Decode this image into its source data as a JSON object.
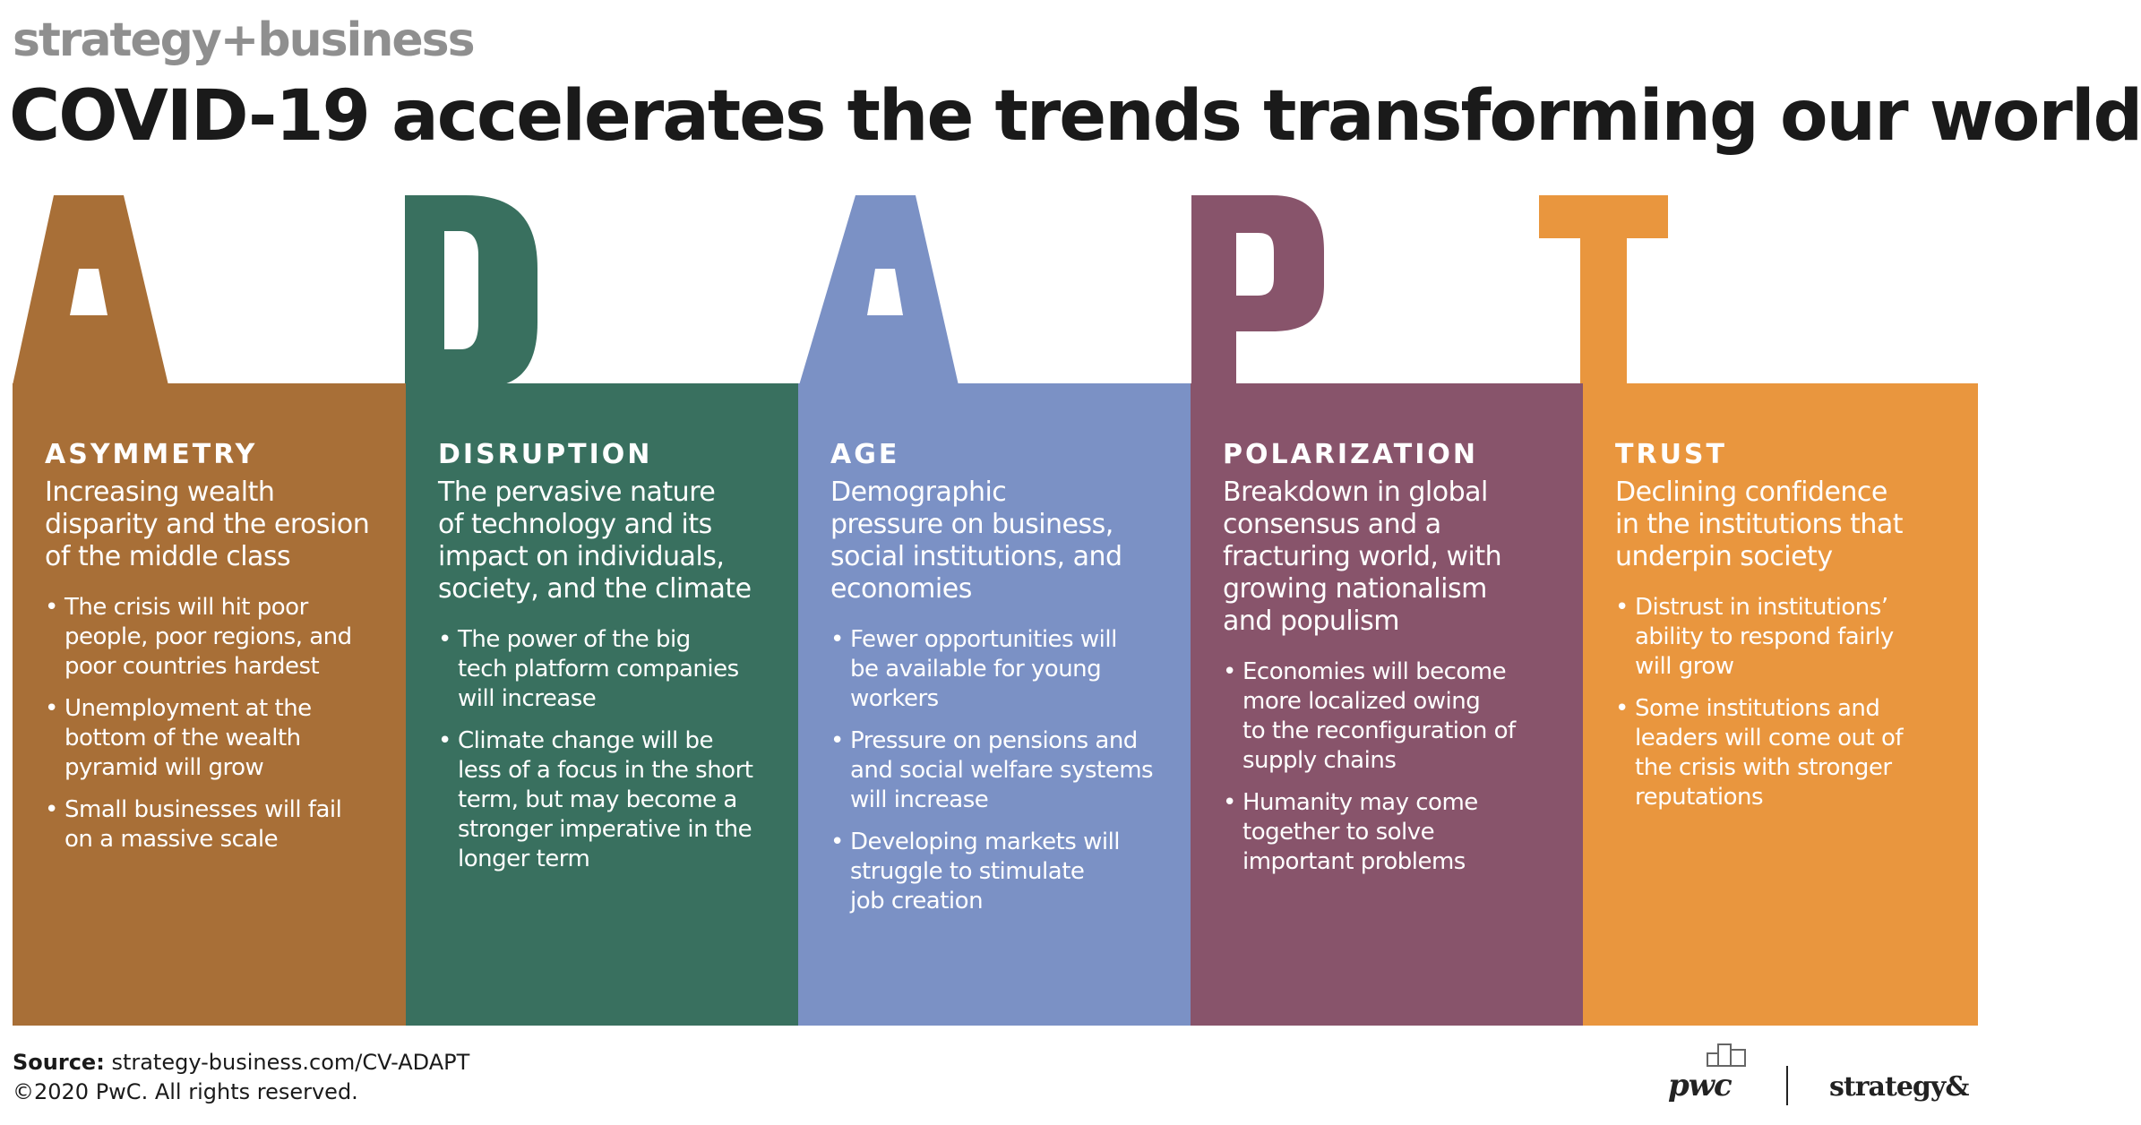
{
  "brand": "strategy+business",
  "headline": "COVID-19 accelerates the trends transforming our world",
  "columns": [
    {
      "letter": "A",
      "color": "#a86f37",
      "title": "ASYMMETRY",
      "subtitle": [
        "Increasing wealth",
        "disparity and the erosion",
        "of the middle class"
      ],
      "bullets": [
        [
          "The crisis will hit poor",
          "people, poor regions, and",
          "poor countries hardest"
        ],
        [
          "Unemployment at the",
          "bottom of the wealth",
          "pyramid will grow"
        ],
        [
          "Small businesses will fail",
          "on a massive scale"
        ]
      ]
    },
    {
      "letter": "D",
      "color": "#39705f",
      "title": "DISRUPTION",
      "subtitle": [
        "The pervasive nature",
        "of technology and its",
        "impact on individuals,",
        "society, and the climate"
      ],
      "bullets": [
        [
          "The power of the big",
          "tech platform companies",
          "will increase"
        ],
        [
          "Climate change will be",
          "less of a focus in the short",
          "term, but may become a",
          "stronger imperative in the",
          "longer term"
        ]
      ]
    },
    {
      "letter": "A",
      "color": "#7b91c5",
      "title": "AGE",
      "subtitle": [
        "Demographic",
        "pressure on business,",
        "social institutions, and",
        "economies"
      ],
      "bullets": [
        [
          "Fewer opportunities will",
          "be available for young",
          "workers"
        ],
        [
          "Pressure on pensions and",
          "and social welfare systems",
          "will increase"
        ],
        [
          "Developing markets will",
          "struggle to stimulate",
          "job creation"
        ]
      ]
    },
    {
      "letter": "P",
      "color": "#88546b",
      "title": "POLARIZATION",
      "subtitle": [
        "Breakdown in global",
        "consensus and a",
        "fracturing world, with",
        "growing nationalism",
        "and populism"
      ],
      "bullets": [
        [
          "Economies will become",
          "more localized owing",
          "to the reconfiguration of",
          "supply chains"
        ],
        [
          "Humanity may come",
          "together to solve",
          "important problems"
        ]
      ]
    },
    {
      "letter": "T",
      "color": "#e9963e",
      "title": "TRUST",
      "subtitle": [
        "Declining confidence",
        "in the institutions that",
        "underpin society"
      ],
      "bullets": [
        [
          "Distrust in institutions’",
          "ability to respond fairly",
          "will grow"
        ],
        [
          "Some institutions and",
          "leaders will come out of",
          "the crisis with stronger",
          "reputations"
        ]
      ]
    }
  ],
  "footer": {
    "source_label": "Source:",
    "source_text": "strategy-business.com/CV-ADAPT",
    "copyright": "©2020 PwC. All rights reserved.",
    "logo_pwc": "pwc",
    "logo_strategy": "strategy&"
  }
}
